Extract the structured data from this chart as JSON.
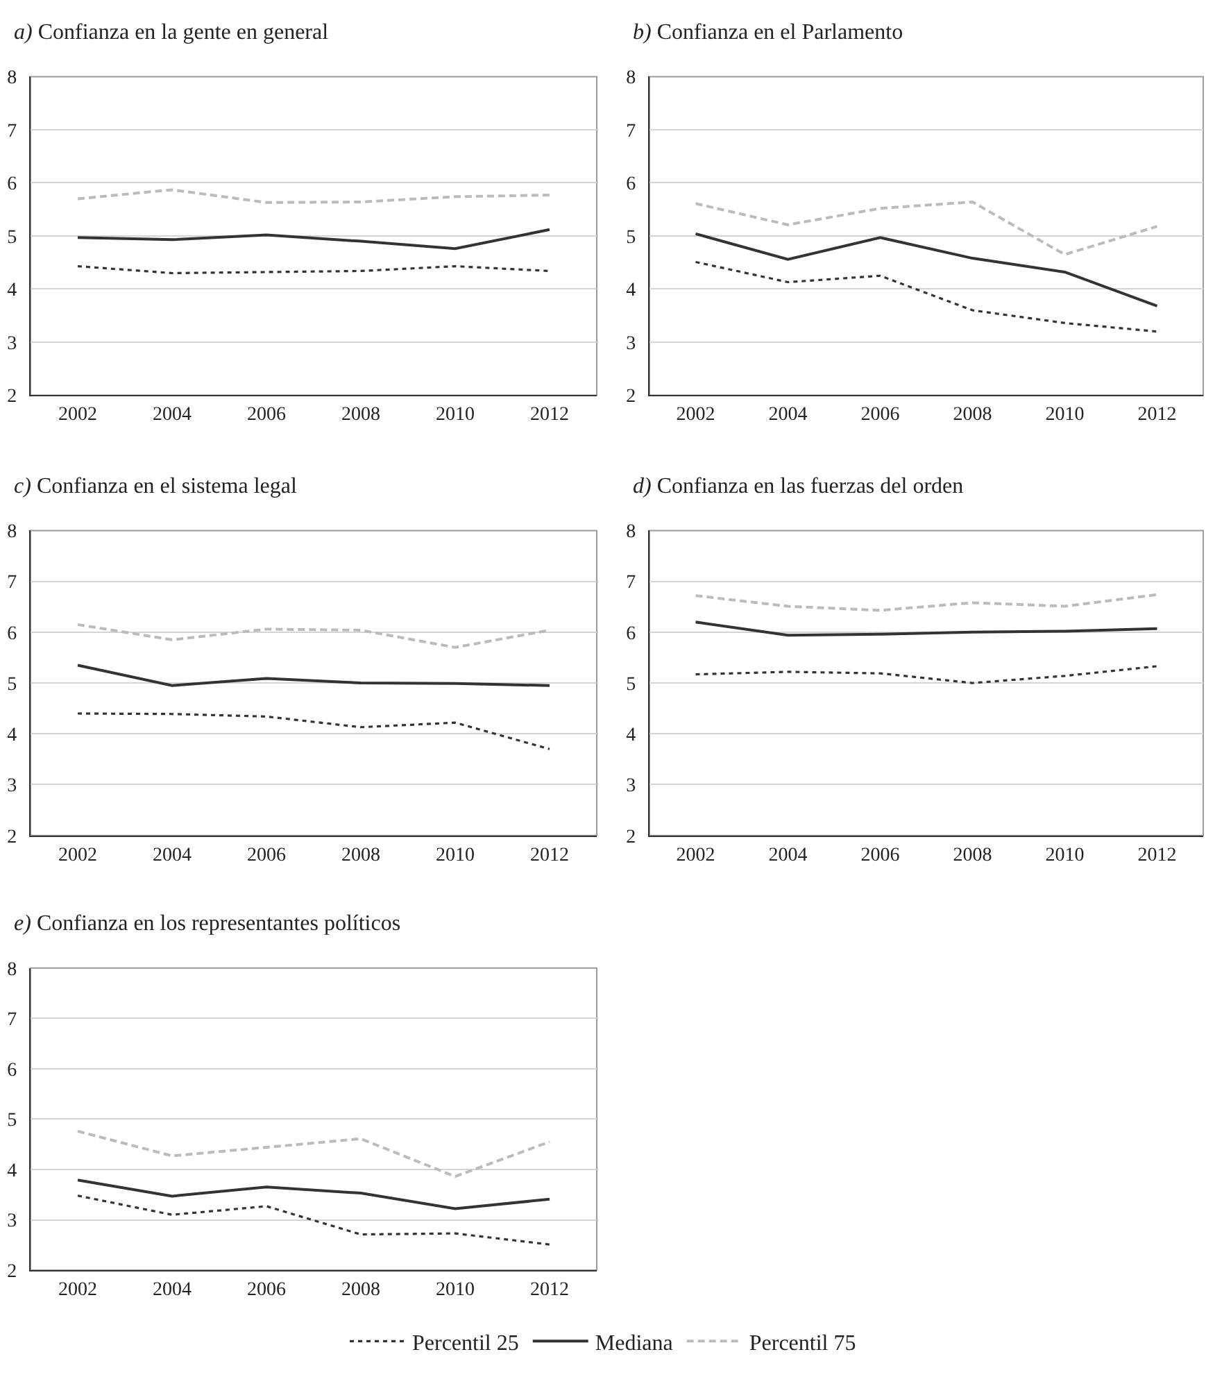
{
  "chart_data": [
    {
      "type": "line",
      "title": "a) Confianza en la gente en general",
      "categories": [
        "2002",
        "2004",
        "2006",
        "2008",
        "2010",
        "2012"
      ],
      "ylim": [
        2,
        8
      ],
      "yticks": [
        2,
        3,
        4,
        5,
        6,
        7,
        8
      ],
      "grid": "y",
      "legend": "bottom",
      "series": [
        {
          "name": "Percentil 25",
          "color": "#333333",
          "line_style": "dotted",
          "values": [
            4.43,
            4.3,
            4.32,
            4.34,
            4.43,
            4.34
          ]
        },
        {
          "name": "Mediana",
          "color": "#333333",
          "line_style": "solid",
          "values": [
            4.97,
            4.93,
            5.02,
            4.9,
            4.76,
            5.12
          ]
        },
        {
          "name": "Percentil 75",
          "color": "#bbbbbb",
          "line_style": "dashed",
          "values": [
            5.7,
            5.87,
            5.63,
            5.64,
            5.74,
            5.77
          ]
        }
      ]
    },
    {
      "type": "line",
      "title": "b) Confianza en el Parlamento",
      "categories": [
        "2002",
        "2004",
        "2006",
        "2008",
        "2010",
        "2012"
      ],
      "ylim": [
        2,
        8
      ],
      "yticks": [
        2,
        3,
        4,
        5,
        6,
        7,
        8
      ],
      "grid": "y",
      "series": [
        {
          "name": "Percentil 25",
          "color": "#333333",
          "line_style": "dotted",
          "values": [
            4.51,
            4.13,
            4.25,
            3.6,
            3.36,
            3.2
          ]
        },
        {
          "name": "Mediana",
          "color": "#333333",
          "line_style": "solid",
          "values": [
            5.04,
            4.56,
            4.97,
            4.58,
            4.32,
            3.68
          ]
        },
        {
          "name": "Percentil 75",
          "color": "#bbbbbb",
          "line_style": "dashed",
          "values": [
            5.61,
            5.21,
            5.52,
            5.64,
            4.65,
            5.18
          ]
        }
      ]
    },
    {
      "type": "line",
      "title": "c) Confianza en el sistema legal",
      "categories": [
        "2002",
        "2004",
        "2006",
        "2008",
        "2010",
        "2012"
      ],
      "ylim": [
        2,
        8
      ],
      "yticks": [
        2,
        3,
        4,
        5,
        6,
        7,
        8
      ],
      "grid": "y",
      "series": [
        {
          "name": "Percentil 25",
          "color": "#333333",
          "line_style": "dotted",
          "values": [
            4.4,
            4.39,
            4.34,
            4.13,
            4.22,
            3.7
          ]
        },
        {
          "name": "Mediana",
          "color": "#333333",
          "line_style": "solid",
          "values": [
            5.35,
            4.95,
            5.09,
            5.0,
            4.99,
            4.95
          ]
        },
        {
          "name": "Percentil 75",
          "color": "#bbbbbb",
          "line_style": "dashed",
          "values": [
            6.15,
            5.85,
            6.06,
            6.04,
            5.7,
            6.04
          ]
        }
      ]
    },
    {
      "type": "line",
      "title": "d) Confianza en las fuerzas del orden",
      "categories": [
        "2002",
        "2004",
        "2006",
        "2008",
        "2010",
        "2012"
      ],
      "ylim": [
        2,
        8
      ],
      "yticks": [
        2,
        3,
        4,
        5,
        6,
        7,
        8
      ],
      "grid": "y",
      "series": [
        {
          "name": "Percentil 25",
          "color": "#333333",
          "line_style": "dotted",
          "values": [
            5.17,
            5.22,
            5.19,
            5.0,
            5.14,
            5.33
          ]
        },
        {
          "name": "Mediana",
          "color": "#333333",
          "line_style": "solid",
          "values": [
            6.2,
            5.94,
            5.96,
            6.0,
            6.02,
            6.07
          ]
        },
        {
          "name": "Percentil 75",
          "color": "#bbbbbb",
          "line_style": "dashed",
          "values": [
            6.72,
            6.51,
            6.43,
            6.58,
            6.51,
            6.74
          ]
        }
      ]
    },
    {
      "type": "line",
      "title": "e) Confianza en los representantes políticos",
      "categories": [
        "2002",
        "2004",
        "2006",
        "2008",
        "2010",
        "2012"
      ],
      "ylim": [
        2,
        8
      ],
      "yticks": [
        2,
        3,
        4,
        5,
        6,
        7,
        8
      ],
      "grid": "y",
      "series": [
        {
          "name": "Percentil 25",
          "color": "#333333",
          "line_style": "dotted",
          "values": [
            3.48,
            3.1,
            3.27,
            2.71,
            2.73,
            2.51
          ]
        },
        {
          "name": "Mediana",
          "color": "#333333",
          "line_style": "solid",
          "values": [
            3.79,
            3.47,
            3.65,
            3.53,
            3.22,
            3.41
          ]
        },
        {
          "name": "Percentil 75",
          "color": "#bbbbbb",
          "line_style": "dashed",
          "values": [
            4.76,
            4.27,
            4.44,
            4.61,
            3.86,
            4.55
          ]
        }
      ]
    }
  ]
}
